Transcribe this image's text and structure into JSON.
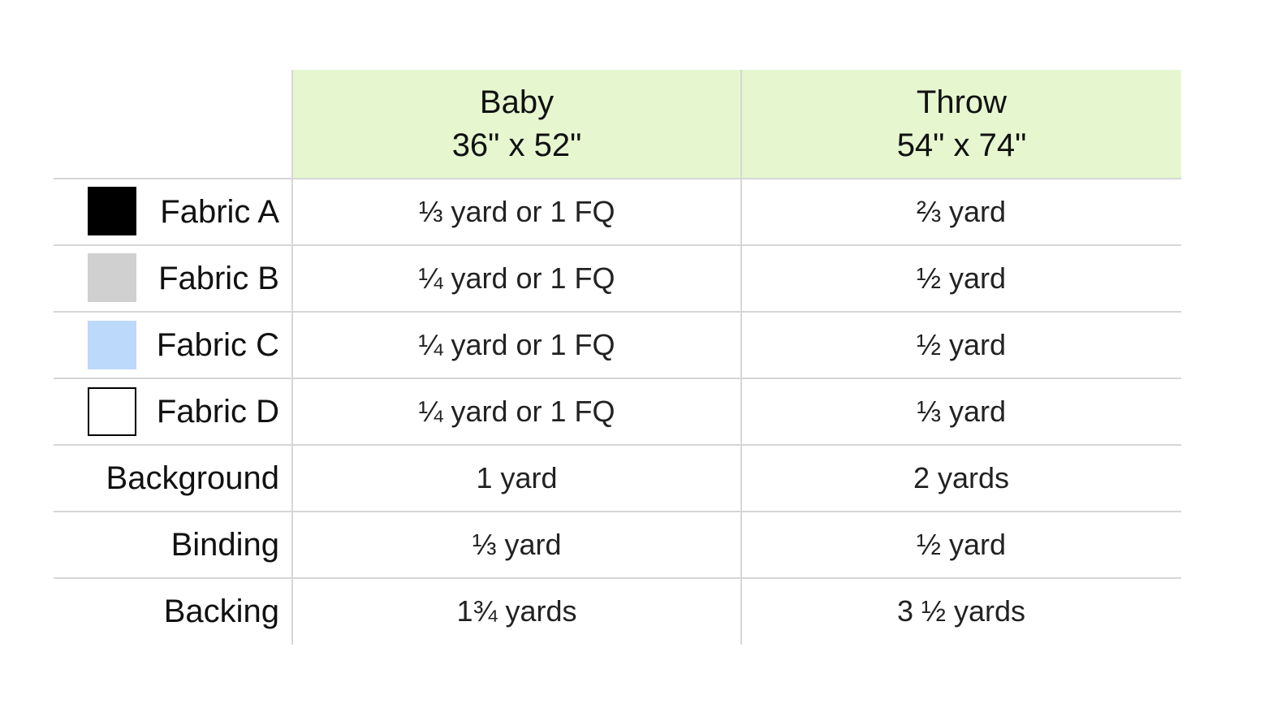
{
  "table": {
    "header": [
      {
        "title": "Baby",
        "size": "36\" x 52\""
      },
      {
        "title": "Throw",
        "size": "54\" x 74\""
      }
    ],
    "rows": [
      [
        "Fabric A",
        "⅓ yard or 1 FQ",
        "⅔ yard"
      ],
      [
        "Fabric B",
        "¼ yard or 1 FQ",
        "½ yard"
      ],
      [
        "Fabric C",
        "¼ yard or 1 FQ",
        "½ yard"
      ],
      [
        "Fabric D",
        "¼ yard or 1 FQ",
        "⅓ yard"
      ],
      [
        "Background",
        "1 yard",
        "2 yards"
      ],
      [
        "Binding",
        "⅓ yard",
        "½ yard"
      ],
      [
        "Backing",
        "1¾ yards",
        "3 ½ yards"
      ]
    ]
  }
}
